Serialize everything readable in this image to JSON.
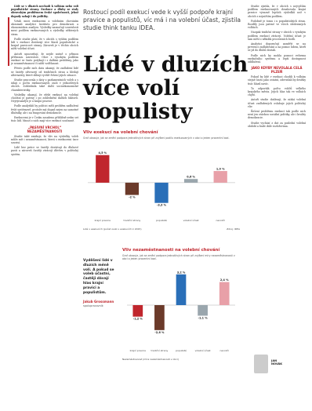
{
  "article": {
    "dek": "Rostoucí podíl exekucí vede k vyšší podpoře krajní pravice a populistů, víc má i na volební účast, zjistila studie think tanku IDEA.",
    "title_lines": [
      "Lidé v dluzích",
      "více volí",
      "populisty"
    ]
  },
  "left_column": {
    "paragraphs": [
      "Lidé se v dluzích nechodí k volbám nebo volí populistické strany. Exekuce a dluhy se staly obrovským problémem české společnosti, jehož dopady sahají i do politiky.",
      "Vztah mezi exekucemi a volebním chováním zkoumali analytici Institutu pro demokracii a ekonomickou analýzu. Výsledky naznačují souvislosti mezi podílem exekuovaných a výsledky některých stran.",
      "Podle studie platí, že v obcích s vyšším podílem lidí v exekuci dostávají více hlasů populistické a krajně pravicové strany. Zároveň je v těchto obcích nižší volební účast.",
      "Autoři upozorňují, že nejde nutně o přímou příčinnou souvislost. Obce s vysokým podílem exekucí se často potýkají i s dalšími problémy, jako je nezaměstnanost či nižší vzdělanost.",
      "Přesto podle nich data ukazují, že zadlužení lidé se častěji odvracejí od tradičních stran a hledají alternativy, které slibují rychlé řešení jejich situace.",
      "Studie pracovala s daty z parlamentních voleb a s údaji o počtu exekuovaných osob v jednotlivých obcích. Zohlednila také další socioekonomické charakteristiky.",
      "Výsledky ukazují, že efekt exekucí na volební chování je patrný i po zohlednění dalších faktorů. Nejvýraznější je u krajní pravice.",
      "Podle analytiků by politici měli problém zadlužení řešit systémově, protože má dopad nejen na samotné dlužníky, ale i na fungování demokracie.",
      "Exekucemi je v Česku zasaženo přibližně sedm set tisíc lidí. Mnozí z nich mají více exekucí současně."
    ],
    "subhead": "„PASIVNÍ VRCHOL“ NEZAMĚSTNANOSTI",
    "paragraphs_2": [
      "Studie také zmiňuje, že vliv na výsledky voleb může mít i nezaměstnanost, která s exekucemi úzce souvisí.",
      "Lidé bez práce se častěji dostávají do dluhové pasti a zároveň častěji ztrácejí důvěru v politický systém."
    ]
  },
  "right_column": {
    "paragraphs": [
      "Studie zjistila, že v obcích s nejvyšším podílem exekuovaných dosahovala krajní pravice výrazně lepších výsledků než v obcích s nejnižším podílem.",
      "Podobně je tomu i u populistických stran. Rozdíly jsou patrné ve všech sledovaných volbách.",
      "Naopak tradiční strany v obcích s vysokým podílem exekucí ztrácejí. Volební účast je tam nižší o několik procentních bodů.",
      "Analytici doporučují zaměřit se na prevenci zadlužování a na pomoc lidem, kteří se již do dluhů dostali.",
      "Podle nich by mohla pomoci reforma exekučního systému a lepší dostupnost oddlužení."
    ],
    "subhead": "JAKO KDYBY NEVOLALA CELÁ PLZEŇ",
    "paragraphs_2": [
      "Pokud by lidé v exekuci chodili k volbám stejně často jako ostatní, odevzdali by desítky tisíc hlasů navíc.",
      "To odpovídá počtu voličů velkého krajského města. Jejich hlas tak ve volbách chybí.",
      "Autoři studie dodávají, že nízká volební účast zadlužených oslabuje jejich politický vliv.",
      "Řešení problému exekucí tak podle nich není jen otázkou sociální politiky, ale i kvality demokracie.",
      "Studie vychází z dat za poslední volební období a bude dále rozšiřována."
    ]
  },
  "pull_quote": {
    "text": "Vyděšeni lidé v dluzích méně volí. A pokud se voleb účastní, častěji dávají hlas krajní pravici a populistům.",
    "author": "Jakub Grossmann",
    "role": "spolupracovník"
  },
  "byline_box": {
    "name_lines": [
      "JAN",
      "NOVÁK"
    ]
  },
  "chart_data": [
    {
      "type": "bar",
      "title": "Vliv exekucí na volební chování",
      "description": "Graf ukazuje, jak se změní podpora jednotlivých stran při zvýšení podílu exekuovaných v obci o jeden procentní bod.",
      "categories": [
        "krajní pravice",
        "tradiční strany",
        "populisté",
        "volební účast",
        "nevoliči"
      ],
      "values": [
        4.5,
        -2.0,
        -3.3,
        0.6,
        1.9
      ],
      "value_labels": [
        "4,5 %",
        "-2 %",
        "-3,3 %",
        "0,6 %",
        "1,9 %"
      ],
      "colors": [
        "#c0262d",
        "#6b3a2a",
        "#2a6fb8",
        "#9aa6ad",
        "#e8a0a8"
      ],
      "ylim": [
        -5,
        6
      ],
      "footnote": "Lidé v exekucích (počet osob v exekucích k 2015)",
      "source": "Zdroj: IDEA"
    },
    {
      "type": "bar",
      "title": "Vliv nezaměstnanosti na volební chování",
      "description": "Graf ukazuje, jak se změní podpora jednotlivých stran při zvýšení míry nezaměstnanosti v obci o jeden procentní bod.",
      "categories": [
        "krajní pravice",
        "tradiční strany",
        "populisté",
        "volební účast",
        "nevoliči"
      ],
      "values": [
        -1.2,
        -2.6,
        3.2,
        -1.1,
        2.4
      ],
      "value_labels": [
        "-1,2 %",
        "-2,6 %",
        "3,2 %",
        "-1,1 %",
        "2,4 %"
      ],
      "colors": [
        "#c0262d",
        "#6b3a2a",
        "#2a6fb8",
        "#9aa6ad",
        "#e8a0a8"
      ],
      "ylim": [
        -4,
        4
      ],
      "footnote": "Nezaměstnanost (míra nezaměstnanosti v obci)",
      "source": "Zdroj: IDEA"
    }
  ]
}
